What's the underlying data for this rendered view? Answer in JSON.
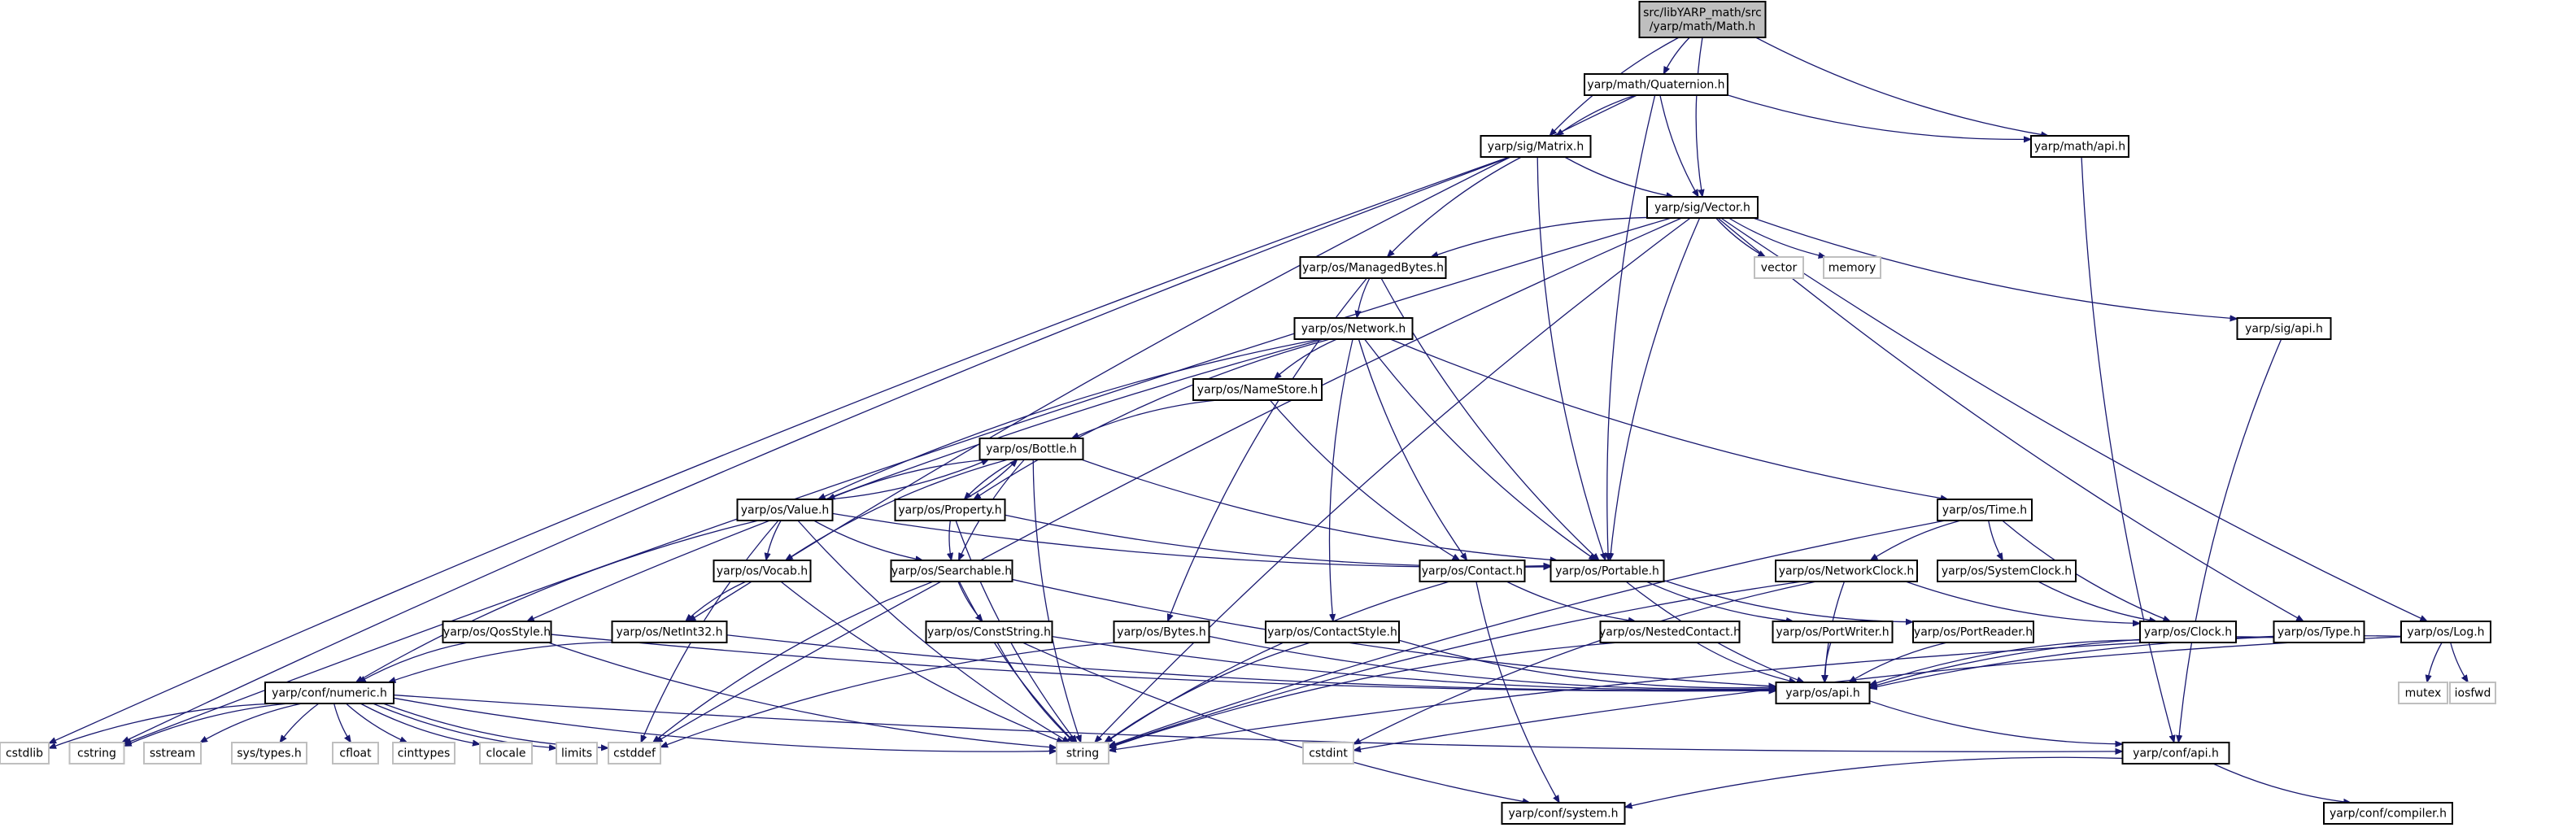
{
  "graph": {
    "title": "src/libYARP_math/src/yarp/math/Math.h",
    "colors": {
      "edge": "#191970",
      "root_fill": "#bfbfbf",
      "node_border": "#000000",
      "system_header_border": "#bfbfbf"
    },
    "nodes": [
      {
        "id": "math_h",
        "label": [
          "src/libYARP_math/src",
          "/yarp/math/Math.h"
        ],
        "root": true
      },
      {
        "id": "quat",
        "label": [
          "yarp/math/Quaternion.h"
        ]
      },
      {
        "id": "matrix",
        "label": [
          "yarp/sig/Matrix.h"
        ]
      },
      {
        "id": "mathapi",
        "label": [
          "yarp/math/api.h"
        ]
      },
      {
        "id": "vector",
        "label": [
          "yarp/sig/Vector.h"
        ]
      },
      {
        "id": "managed",
        "label": [
          "yarp/os/ManagedBytes.h"
        ]
      },
      {
        "id": "vector_std",
        "label": [
          "vector"
        ],
        "system": true
      },
      {
        "id": "memory_std",
        "label": [
          "memory"
        ],
        "system": true
      },
      {
        "id": "sigapi",
        "label": [
          "yarp/sig/api.h"
        ]
      },
      {
        "id": "network",
        "label": [
          "yarp/os/Network.h"
        ]
      },
      {
        "id": "namestore",
        "label": [
          "yarp/os/NameStore.h"
        ]
      },
      {
        "id": "bottle",
        "label": [
          "yarp/os/Bottle.h"
        ]
      },
      {
        "id": "value",
        "label": [
          "yarp/os/Value.h"
        ]
      },
      {
        "id": "property",
        "label": [
          "yarp/os/Property.h"
        ]
      },
      {
        "id": "time",
        "label": [
          "yarp/os/Time.h"
        ]
      },
      {
        "id": "contact",
        "label": [
          "yarp/os/Contact.h"
        ]
      },
      {
        "id": "portable",
        "label": [
          "yarp/os/Portable.h"
        ]
      },
      {
        "id": "netclock",
        "label": [
          "yarp/os/NetworkClock.h"
        ]
      },
      {
        "id": "sysclock",
        "label": [
          "yarp/os/SystemClock.h"
        ]
      },
      {
        "id": "vocab",
        "label": [
          "yarp/os/Vocab.h"
        ]
      },
      {
        "id": "searchable",
        "label": [
          "yarp/os/Searchable.h"
        ]
      },
      {
        "id": "qos",
        "label": [
          "yarp/os/QosStyle.h"
        ]
      },
      {
        "id": "netint",
        "label": [
          "yarp/os/NetInt32.h"
        ]
      },
      {
        "id": "conststr",
        "label": [
          "yarp/os/ConstString.h"
        ]
      },
      {
        "id": "bytes",
        "label": [
          "yarp/os/Bytes.h"
        ]
      },
      {
        "id": "contactstyle",
        "label": [
          "yarp/os/ContactStyle.h"
        ]
      },
      {
        "id": "nested",
        "label": [
          "yarp/os/NestedContact.h"
        ]
      },
      {
        "id": "portwriter",
        "label": [
          "yarp/os/PortWriter.h"
        ]
      },
      {
        "id": "portreader",
        "label": [
          "yarp/os/PortReader.h"
        ]
      },
      {
        "id": "clock",
        "label": [
          "yarp/os/Clock.h"
        ]
      },
      {
        "id": "type",
        "label": [
          "yarp/os/Type.h"
        ]
      },
      {
        "id": "log",
        "label": [
          "yarp/os/Log.h"
        ]
      },
      {
        "id": "numeric",
        "label": [
          "yarp/conf/numeric.h"
        ]
      },
      {
        "id": "osapi",
        "label": [
          "yarp/os/api.h"
        ]
      },
      {
        "id": "mutex",
        "label": [
          "mutex"
        ],
        "system": true
      },
      {
        "id": "iosfwd",
        "label": [
          "iosfwd"
        ],
        "system": true
      },
      {
        "id": "cstdlib",
        "label": [
          "cstdlib"
        ],
        "system": true
      },
      {
        "id": "cstring",
        "label": [
          "cstring"
        ],
        "system": true
      },
      {
        "id": "sstream",
        "label": [
          "sstream"
        ],
        "system": true
      },
      {
        "id": "systypes",
        "label": [
          "sys/types.h"
        ],
        "system": true
      },
      {
        "id": "cfloat",
        "label": [
          "cfloat"
        ],
        "system": true
      },
      {
        "id": "cinttypes",
        "label": [
          "cinttypes"
        ],
        "system": true
      },
      {
        "id": "clocale",
        "label": [
          "clocale"
        ],
        "system": true
      },
      {
        "id": "limits",
        "label": [
          "limits"
        ],
        "system": true
      },
      {
        "id": "cstddef",
        "label": [
          "cstddef"
        ],
        "system": true
      },
      {
        "id": "string",
        "label": [
          "string"
        ],
        "system": true
      },
      {
        "id": "cstdint",
        "label": [
          "cstdint"
        ],
        "system": true
      },
      {
        "id": "confapi",
        "label": [
          "yarp/conf/api.h"
        ]
      },
      {
        "id": "confsystem",
        "label": [
          "yarp/conf/system.h"
        ]
      },
      {
        "id": "confcompiler",
        "label": [
          "yarp/conf/compiler.h"
        ]
      }
    ],
    "edges": [
      [
        "math_h",
        "quat"
      ],
      [
        "math_h",
        "matrix"
      ],
      [
        "math_h",
        "vector"
      ],
      [
        "math_h",
        "mathapi"
      ],
      [
        "quat",
        "matrix"
      ],
      [
        "quat",
        "vector"
      ],
      [
        "quat",
        "mathapi"
      ],
      [
        "quat",
        "portable"
      ],
      [
        "quat",
        "netint"
      ],
      [
        "matrix",
        "cstdlib"
      ],
      [
        "matrix",
        "cstring"
      ],
      [
        "matrix",
        "vector"
      ],
      [
        "matrix",
        "managed"
      ],
      [
        "matrix",
        "portable"
      ],
      [
        "mathapi",
        "confapi"
      ],
      [
        "vector",
        "cstring"
      ],
      [
        "vector",
        "cstddef"
      ],
      [
        "vector",
        "managed"
      ],
      [
        "vector",
        "vector_std"
      ],
      [
        "vector",
        "memory_std"
      ],
      [
        "vector",
        "sigapi"
      ],
      [
        "vector",
        "portable"
      ],
      [
        "vector",
        "string"
      ],
      [
        "vector",
        "log"
      ],
      [
        "vector",
        "type"
      ],
      [
        "managed",
        "network"
      ],
      [
        "managed",
        "bytes"
      ],
      [
        "managed",
        "portable"
      ],
      [
        "sigapi",
        "confapi"
      ],
      [
        "network",
        "namestore"
      ],
      [
        "network",
        "value"
      ],
      [
        "network",
        "property"
      ],
      [
        "network",
        "contact"
      ],
      [
        "network",
        "portable"
      ],
      [
        "network",
        "contactstyle"
      ],
      [
        "network",
        "qos"
      ],
      [
        "network",
        "time"
      ],
      [
        "namestore",
        "bottle"
      ],
      [
        "namestore",
        "contact"
      ],
      [
        "bottle",
        "value"
      ],
      [
        "bottle",
        "property"
      ],
      [
        "bottle",
        "searchable"
      ],
      [
        "bottle",
        "portable"
      ],
      [
        "bottle",
        "string"
      ],
      [
        "bottle",
        "vocab"
      ],
      [
        "value",
        "bottle"
      ],
      [
        "value",
        "vocab"
      ],
      [
        "value",
        "searchable"
      ],
      [
        "value",
        "portable"
      ],
      [
        "value",
        "numeric"
      ],
      [
        "value",
        "string"
      ],
      [
        "value",
        "cstddef"
      ],
      [
        "property",
        "bottle"
      ],
      [
        "property",
        "searchable"
      ],
      [
        "property",
        "portable"
      ],
      [
        "property",
        "string"
      ],
      [
        "time",
        "netclock"
      ],
      [
        "time",
        "sysclock"
      ],
      [
        "time",
        "clock"
      ],
      [
        "time",
        "string"
      ],
      [
        "contact",
        "nested"
      ],
      [
        "contact",
        "string"
      ],
      [
        "contact",
        "confsystem"
      ],
      [
        "portable",
        "portwriter"
      ],
      [
        "portable",
        "portreader"
      ],
      [
        "portable",
        "osapi"
      ],
      [
        "netclock",
        "clock"
      ],
      [
        "netclock",
        "osapi"
      ],
      [
        "netclock",
        "string"
      ],
      [
        "netclock",
        "cstdint"
      ],
      [
        "sysclock",
        "clock"
      ],
      [
        "vocab",
        "netint"
      ],
      [
        "vocab",
        "string"
      ],
      [
        "searchable",
        "conststr"
      ],
      [
        "searchable",
        "string"
      ],
      [
        "searchable",
        "osapi"
      ],
      [
        "searchable",
        "cstddef"
      ],
      [
        "qos",
        "numeric"
      ],
      [
        "qos",
        "string"
      ],
      [
        "qos",
        "osapi"
      ],
      [
        "netint",
        "numeric"
      ],
      [
        "netint",
        "osapi"
      ],
      [
        "conststr",
        "string"
      ],
      [
        "conststr",
        "osapi"
      ],
      [
        "conststr",
        "confsystem"
      ],
      [
        "bytes",
        "cstddef"
      ],
      [
        "bytes",
        "osapi"
      ],
      [
        "contactstyle",
        "string"
      ],
      [
        "contactstyle",
        "osapi"
      ],
      [
        "nested",
        "string"
      ],
      [
        "nested",
        "osapi"
      ],
      [
        "portwriter",
        "osapi"
      ],
      [
        "portreader",
        "osapi"
      ],
      [
        "clock",
        "osapi"
      ],
      [
        "type",
        "osapi"
      ],
      [
        "type",
        "string"
      ],
      [
        "log",
        "mutex"
      ],
      [
        "log",
        "iosfwd"
      ],
      [
        "log",
        "osapi"
      ],
      [
        "log",
        "cstdint"
      ],
      [
        "numeric",
        "cstdlib"
      ],
      [
        "numeric",
        "cstring"
      ],
      [
        "numeric",
        "sstream"
      ],
      [
        "numeric",
        "systypes"
      ],
      [
        "numeric",
        "cfloat"
      ],
      [
        "numeric",
        "cinttypes"
      ],
      [
        "numeric",
        "clocale"
      ],
      [
        "numeric",
        "limits"
      ],
      [
        "numeric",
        "cstddef"
      ],
      [
        "numeric",
        "string"
      ],
      [
        "numeric",
        "confapi"
      ],
      [
        "osapi",
        "confapi"
      ],
      [
        "confapi",
        "confsystem"
      ],
      [
        "confapi",
        "confcompiler"
      ]
    ]
  }
}
